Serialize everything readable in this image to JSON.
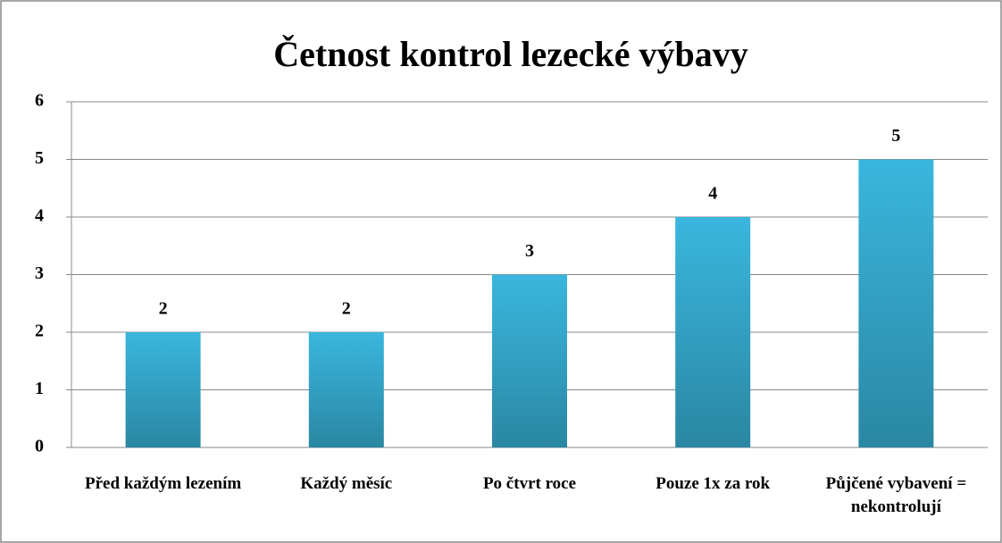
{
  "chart_data": {
    "type": "bar",
    "title": "Četnost kontrol lezecké výbavy",
    "categories": [
      "Před každým lezením",
      "Každý měsíc",
      "Po čtvrt roce",
      "Pouze 1x za rok",
      "Půjčené vybavení = nekontrolují"
    ],
    "values": [
      2,
      2,
      3,
      4,
      5
    ],
    "color": "#35b0d8",
    "ylim": [
      0,
      6
    ],
    "yticks": [
      0,
      1,
      2,
      3,
      4,
      5,
      6
    ],
    "grid": true
  }
}
